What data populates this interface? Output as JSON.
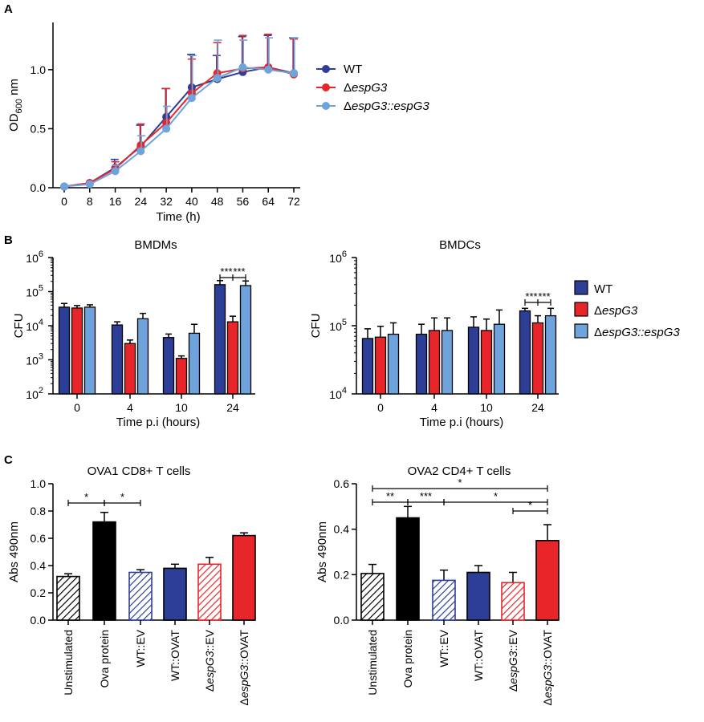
{
  "panels": {
    "A": "A",
    "B": "B",
    "C": "C"
  },
  "colors": {
    "wt": "#2c3e95",
    "mut": "#e8262a",
    "comp": "#6fa3db",
    "ova": "#000000",
    "uns": "#000000"
  },
  "chart_data": [
    {
      "id": "A",
      "type": "line",
      "title": "",
      "xlabel": "Time (h)",
      "ylabel": "OD600 nm",
      "ylabel_main": "OD",
      "ylabel_sub": "600",
      "ylabel_unit": " nm",
      "x": [
        0,
        8,
        16,
        24,
        32,
        40,
        48,
        56,
        64,
        72
      ],
      "xticks": [
        "0",
        "8",
        "16",
        "24",
        "32",
        "40",
        "48",
        "56",
        "64",
        "72"
      ],
      "yticks": [
        "0.0",
        "0.5",
        "1.0"
      ],
      "ylim": [
        0,
        1.4
      ],
      "series": [
        {
          "name": "WT",
          "color": "#2c3e95",
          "values": [
            0.01,
            0.04,
            0.17,
            0.35,
            0.6,
            0.85,
            0.92,
            0.98,
            1.02,
            0.97
          ],
          "err": [
            0.0,
            0.0,
            0.07,
            0.18,
            0.24,
            0.28,
            0.2,
            0.3,
            0.27,
            0.3
          ]
        },
        {
          "name": "ΔespG3",
          "color": "#e8262a",
          "values": [
            0.01,
            0.04,
            0.16,
            0.36,
            0.55,
            0.8,
            0.97,
            1.01,
            1.02,
            0.96
          ],
          "err": [
            0.0,
            0.0,
            0.06,
            0.18,
            0.29,
            0.29,
            0.26,
            0.28,
            0.28,
            0.3
          ]
        },
        {
          "name": "ΔespG3::espG3",
          "color": "#6fa3db",
          "values": [
            0.01,
            0.03,
            0.14,
            0.31,
            0.5,
            0.76,
            0.93,
            1.02,
            1.0,
            0.97
          ],
          "err": [
            0.0,
            0.0,
            0.05,
            0.13,
            0.19,
            0.36,
            0.32,
            0.23,
            0.27,
            0.3
          ]
        }
      ],
      "legend": [
        "WT",
        "ΔespG3",
        "ΔespG3::espG3"
      ]
    },
    {
      "id": "B1",
      "type": "bar",
      "title": "BMDMs",
      "xlabel": "Time p.i (hours)",
      "ylabel": "CFU",
      "yscale": "log",
      "ylim": [
        100,
        1000000
      ],
      "yticks": [
        "10^2",
        "10^3",
        "10^4",
        "10^5",
        "10^6"
      ],
      "categories": [
        "0",
        "4",
        "10",
        "24"
      ],
      "series": [
        {
          "name": "WT",
          "values": [
            35000,
            10500,
            4500,
            160000
          ],
          "err": [
            10000,
            2500,
            1200,
            50000
          ]
        },
        {
          "name": "ΔespG3",
          "values": [
            33000,
            3000,
            1100,
            13000
          ],
          "err": [
            6000,
            800,
            200,
            6000
          ]
        },
        {
          "name": "ΔespG3::espG3",
          "values": [
            35000,
            16000,
            6000,
            150000
          ],
          "err": [
            6000,
            7000,
            5000,
            55000
          ]
        }
      ],
      "annotations": [
        "***",
        "***"
      ]
    },
    {
      "id": "B2",
      "type": "bar",
      "title": "BMDCs",
      "xlabel": "Time p.i (hours)",
      "ylabel": "CFU",
      "yscale": "log",
      "ylim": [
        10000,
        1000000
      ],
      "yticks": [
        "10^4",
        "10^5",
        "10^6"
      ],
      "categories": [
        "0",
        "4",
        "10",
        "24"
      ],
      "series": [
        {
          "name": "WT",
          "values": [
            65000,
            75000,
            95000,
            165000
          ],
          "err": [
            25000,
            30000,
            40000,
            15000
          ]
        },
        {
          "name": "ΔespG3",
          "values": [
            68000,
            85000,
            85000,
            110000
          ],
          "err": [
            30000,
            45000,
            40000,
            30000
          ]
        },
        {
          "name": "ΔespG3::espG3",
          "values": [
            75000,
            85000,
            105000,
            140000
          ],
          "err": [
            35000,
            45000,
            65000,
            40000
          ]
        }
      ],
      "annotations": [
        "***",
        "***"
      ],
      "legend": [
        "WT",
        "ΔespG3",
        "ΔespG3::espG3"
      ]
    },
    {
      "id": "C1",
      "type": "bar",
      "title": "OVA1 CD8+ T cells",
      "ylabel": "Abs 490nm",
      "ylim": [
        0,
        1.0
      ],
      "yticks": [
        "0.0",
        "0.2",
        "0.4",
        "0.6",
        "0.8",
        "1.0"
      ],
      "categories": [
        "Unstimulated",
        "Ova protein",
        "WT::EV",
        "WT::OVAT",
        "ΔespG3::EV",
        "ΔespG3::OVAT"
      ],
      "values": [
        0.32,
        0.72,
        0.35,
        0.38,
        0.41,
        0.62
      ],
      "err": [
        0.02,
        0.07,
        0.02,
        0.03,
        0.05,
        0.02
      ],
      "annotations": [
        "*",
        "*"
      ]
    },
    {
      "id": "C2",
      "type": "bar",
      "title": "OVA2 CD4+ T cells",
      "ylabel": "Abs 490nm",
      "ylim": [
        0,
        0.6
      ],
      "yticks": [
        "0.0",
        "0.2",
        "0.4",
        "0.6"
      ],
      "categories": [
        "Unstimulated",
        "Ova protein",
        "WT::EV",
        "WT::OVAT",
        "ΔespG3::EV",
        "ΔespG3::OVAT"
      ],
      "values": [
        0.205,
        0.45,
        0.175,
        0.21,
        0.165,
        0.35
      ],
      "err": [
        0.04,
        0.05,
        0.045,
        0.03,
        0.045,
        0.07
      ],
      "annotations": [
        "*",
        "**",
        "***",
        "*",
        "*"
      ]
    }
  ]
}
